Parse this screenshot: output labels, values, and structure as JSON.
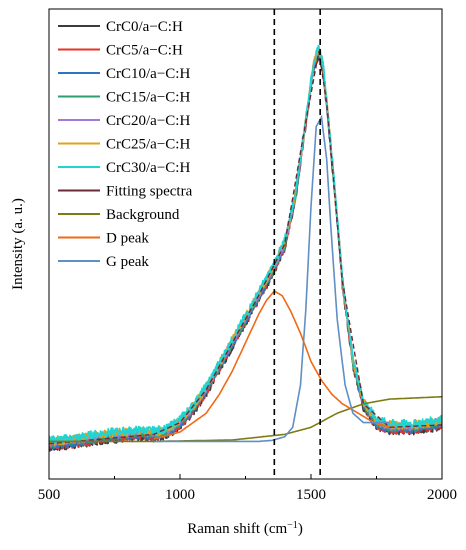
{
  "chart_data": {
    "type": "line",
    "xlabel": "Raman shift (cm",
    "xlabel_sup": "−1",
    "xlabel_end": ")",
    "ylabel": "Intensity (a. u.)",
    "xlim": [
      500,
      2000
    ],
    "ylim": [
      0,
      1
    ],
    "xticks": [
      "500",
      "1000",
      "1500",
      "2000"
    ],
    "y_ticks_shown": false,
    "reference_lines_x": [
      1360,
      1535
    ],
    "legend_placement": "top-left",
    "measured_series": [
      {
        "name": "CrC0/a−C:H",
        "color": "#3c3c3c"
      },
      {
        "name": "CrC5/a−C:H",
        "color": "#e8312a"
      },
      {
        "name": "CrC10/a−C:H",
        "color": "#2f74c0"
      },
      {
        "name": "CrC15/a−C:H",
        "color": "#2e9e6f"
      },
      {
        "name": "CrC20/a−C:H",
        "color": "#a07ad6"
      },
      {
        "name": "CrC25/a−C:H",
        "color": "#e0a21b"
      },
      {
        "name": "CrC30/a−C:H",
        "color": "#20d4d2"
      }
    ],
    "spectrum": {
      "x": [
        500,
        600,
        700,
        800,
        850,
        900,
        950,
        1000,
        1050,
        1100,
        1150,
        1200,
        1250,
        1300,
        1350,
        1400,
        1440,
        1480,
        1510,
        1530,
        1545,
        1560,
        1590,
        1620,
        1660,
        1700,
        1750,
        1800,
        1900,
        2000
      ],
      "y": [
        0.075,
        0.08,
        0.09,
        0.095,
        0.097,
        0.095,
        0.1,
        0.12,
        0.15,
        0.19,
        0.24,
        0.29,
        0.34,
        0.39,
        0.44,
        0.5,
        0.6,
        0.76,
        0.88,
        0.91,
        0.88,
        0.8,
        0.62,
        0.42,
        0.25,
        0.16,
        0.12,
        0.11,
        0.11,
        0.12
      ]
    },
    "fit_series": [
      {
        "name": "Fitting spectra",
        "color": "#6b2a38",
        "x": [
          500,
          700,
          900,
          1000,
          1100,
          1200,
          1300,
          1400,
          1480,
          1530,
          1560,
          1620,
          1700,
          1800,
          2000
        ],
        "y": [
          0.075,
          0.085,
          0.095,
          0.12,
          0.19,
          0.29,
          0.39,
          0.5,
          0.76,
          0.91,
          0.8,
          0.42,
          0.16,
          0.11,
          0.115
        ]
      },
      {
        "name": "Background",
        "color": "#7d7b12",
        "x": [
          500,
          900,
          1200,
          1400,
          1500,
          1550,
          1600,
          1700,
          1800,
          2000
        ],
        "y": [
          0.08,
          0.08,
          0.083,
          0.095,
          0.11,
          0.125,
          0.14,
          0.16,
          0.17,
          0.175
        ]
      },
      {
        "name": "D peak",
        "color": "#ef6a16",
        "x": [
          900,
          1000,
          1100,
          1150,
          1200,
          1250,
          1300,
          1330,
          1360,
          1390,
          1420,
          1460,
          1500,
          1540,
          1580,
          1620,
          1680,
          1740,
          1800
        ],
        "y": [
          0.085,
          0.1,
          0.14,
          0.18,
          0.23,
          0.29,
          0.35,
          0.38,
          0.4,
          0.39,
          0.36,
          0.31,
          0.25,
          0.21,
          0.18,
          0.16,
          0.14,
          0.12,
          0.11
        ]
      },
      {
        "name": "G peak",
        "color": "#5f8fc4",
        "x": [
          900,
          1300,
          1350,
          1400,
          1430,
          1460,
          1480,
          1500,
          1520,
          1540,
          1560,
          1580,
          1600,
          1630,
          1660,
          1700,
          1760,
          1800
        ],
        "y": [
          0.08,
          0.08,
          0.082,
          0.09,
          0.11,
          0.2,
          0.36,
          0.58,
          0.75,
          0.77,
          0.68,
          0.5,
          0.34,
          0.2,
          0.14,
          0.12,
          0.12,
          0.12
        ]
      }
    ]
  }
}
